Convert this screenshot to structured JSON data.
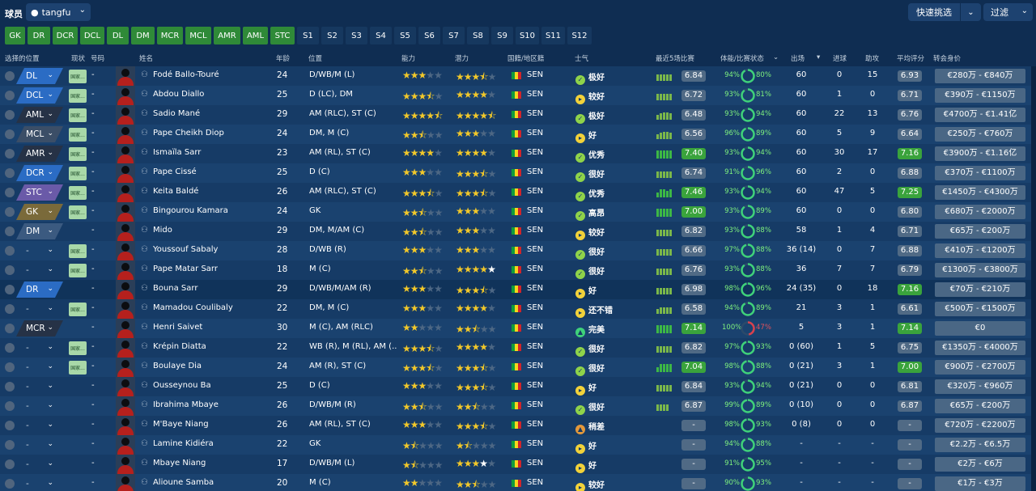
{
  "header": {
    "title": "球员",
    "view": "tangfu",
    "quick_pick": "快速挑选",
    "filter": "过滤"
  },
  "position_tabs": [
    {
      "label": "GK",
      "w": 25,
      "on": true
    },
    {
      "label": "DR",
      "w": 28,
      "on": true
    },
    {
      "label": "DCR",
      "w": 31,
      "on": true
    },
    {
      "label": "DCL",
      "w": 30,
      "on": true
    },
    {
      "label": "DL",
      "w": 27,
      "on": true
    },
    {
      "label": "DM",
      "w": 29,
      "on": true
    },
    {
      "label": "MCR",
      "w": 32,
      "on": true
    },
    {
      "label": "MCL",
      "w": 32,
      "on": true
    },
    {
      "label": "AMR",
      "w": 33,
      "on": true
    },
    {
      "label": "AML",
      "w": 31,
      "on": true
    },
    {
      "label": "STC",
      "w": 30,
      "on": true
    },
    {
      "label": "S1",
      "w": 27,
      "on": false
    },
    {
      "label": "S2",
      "w": 27,
      "on": false
    },
    {
      "label": "S3",
      "w": 27,
      "on": false
    },
    {
      "label": "S4",
      "w": 27,
      "on": false
    },
    {
      "label": "S5",
      "w": 27,
      "on": false
    },
    {
      "label": "S6",
      "w": 27,
      "on": false
    },
    {
      "label": "S7",
      "w": 27,
      "on": false
    },
    {
      "label": "S8",
      "w": 27,
      "on": false
    },
    {
      "label": "S9",
      "w": 27,
      "on": false
    },
    {
      "label": "S10",
      "w": 29,
      "on": false
    },
    {
      "label": "S11",
      "w": 29,
      "on": false
    },
    {
      "label": "S12",
      "w": 30,
      "on": false
    }
  ],
  "columns": {
    "select_pos": "选择的位置",
    "status": "现状",
    "number": "号码",
    "name": "姓名",
    "age": "年龄",
    "position": "位置",
    "ability": "能力",
    "potential": "潜力",
    "nation": "国籍/地区籍",
    "morale": "士气",
    "form": "最近5场比赛",
    "condition": "体能/比赛状态",
    "apps": "出场",
    "goals": "进球",
    "assists": "助攻",
    "avg": "平均评分",
    "value": "转会身价"
  },
  "colors": {
    "DL": "#2b6cc4",
    "DCL": "#2b6cc4",
    "AML": "#263246",
    "MCL": "#3b4e67",
    "AMR": "#263246",
    "DCR": "#2b6cc4",
    "STC": "#6a5aa8",
    "GK": "#7a6a3a",
    "DM": "#3b5a80",
    "DR": "#2b6cc4",
    "MCR": "#263246"
  },
  "players": [
    {
      "pos": "DL",
      "st": "国家...",
      "no": "-",
      "name": "Fodé Ballo-Touré",
      "age": "24",
      "ppos": "D/WB/M (L)",
      "ab": 3,
      "abh": 0,
      "pt": 3,
      "pth": 1,
      "nat": "SEN",
      "mor": "极好",
      "mi": "g",
      "form": [
        8,
        8,
        8,
        8,
        8
      ],
      "rat": "6.84",
      "rg": false,
      "cond": "94%",
      "ring": 0.92,
      "sh": "80%",
      "apps": "60",
      "gls": "0",
      "ast": "15",
      "avr": "6.93",
      "ag": false,
      "val": "€280万 - €840万"
    },
    {
      "pos": "DCL",
      "st": "国家...",
      "no": "-",
      "name": "Abdou Diallo",
      "age": "25",
      "ppos": "D (LC), DM",
      "ab": 3,
      "abh": 1,
      "pt": 4,
      "pth": 0,
      "nat": "SEN",
      "mor": "较好",
      "mi": "y",
      "form": [
        8,
        8,
        8,
        8,
        8
      ],
      "rat": "6.72",
      "rg": false,
      "cond": "93%",
      "ring": 0.9,
      "sh": "81%",
      "apps": "60",
      "gls": "1",
      "ast": "0",
      "avr": "6.71",
      "ag": false,
      "val": "€390万 - €1150万"
    },
    {
      "pos": "AML",
      "st": "国家...",
      "no": "-",
      "name": "Sadio Mané",
      "age": "29",
      "ppos": "AM (RLC), ST (C)",
      "ab": 4,
      "abh": 1,
      "pt": 4,
      "pth": 1,
      "nat": "SEN",
      "mor": "极好",
      "mi": "g",
      "form": [
        6,
        8,
        9,
        9,
        8
      ],
      "rat": "6.48",
      "rg": false,
      "cond": "93%",
      "ring": 0.9,
      "sh": "94%",
      "apps": "60",
      "gls": "22",
      "ast": "13",
      "avr": "6.76",
      "ag": false,
      "val": "€4700万 - €1.41亿"
    },
    {
      "pos": "MCL",
      "st": "国家...",
      "no": "-",
      "name": "Pape Cheikh Diop",
      "age": "24",
      "ppos": "DM, M (C)",
      "ab": 2,
      "abh": 1,
      "pt": 3,
      "pth": 0,
      "nat": "SEN",
      "mor": "好",
      "mi": "y",
      "form": [
        6,
        8,
        9,
        9,
        8
      ],
      "rat": "6.56",
      "rg": false,
      "cond": "96%",
      "ring": 0.94,
      "sh": "89%",
      "apps": "60",
      "gls": "5",
      "ast": "9",
      "avr": "6.64",
      "ag": false,
      "val": "€250万 - €760万"
    },
    {
      "pos": "AMR",
      "st": "国家...",
      "no": "-",
      "name": "Ismaïla Sarr",
      "age": "23",
      "ppos": "AM (RL), ST (C)",
      "ab": 4,
      "abh": 0,
      "pt": 4,
      "pth": 0,
      "nat": "SEN",
      "mor": "优秀",
      "mi": "g",
      "form": [
        10,
        10,
        10,
        10,
        10
      ],
      "fg": true,
      "rat": "7.40",
      "rg": true,
      "cond": "93%",
      "ring": 0.9,
      "sh": "94%",
      "apps": "60",
      "gls": "30",
      "ast": "17",
      "avr": "7.16",
      "ag": true,
      "val": "€3900万 - €1.16亿"
    },
    {
      "pos": "DCR",
      "st": "国家...",
      "no": "-",
      "name": "Pape Cissé",
      "age": "25",
      "ppos": "D (C)",
      "ab": 3,
      "abh": 0,
      "pt": 3,
      "pth": 1,
      "nat": "SEN",
      "mor": "很好",
      "mi": "g",
      "form": [
        8,
        8,
        8,
        8,
        8
      ],
      "rat": "6.74",
      "rg": false,
      "cond": "91%",
      "ring": 0.88,
      "sh": "96%",
      "apps": "60",
      "gls": "2",
      "ast": "0",
      "avr": "6.88",
      "ag": false,
      "val": "€370万 - €1100万"
    },
    {
      "pos": "STC",
      "st": "国家...",
      "no": "-",
      "name": "Keita Baldé",
      "age": "26",
      "ppos": "AM (RLC), ST (C)",
      "ab": 3,
      "abh": 1,
      "pt": 3,
      "pth": 1,
      "nat": "SEN",
      "mor": "优秀",
      "mi": "g",
      "form": [
        6,
        10,
        10,
        8,
        10
      ],
      "fg": true,
      "rat": "7.46",
      "rg": true,
      "cond": "93%",
      "ring": 0.9,
      "sh": "94%",
      "apps": "60",
      "gls": "47",
      "ast": "5",
      "avr": "7.25",
      "ag": true,
      "val": "€1450万 - €4300万"
    },
    {
      "pos": "GK",
      "st": "国家...",
      "no": "-",
      "name": "Bingourou Kamara",
      "age": "24",
      "ppos": "GK",
      "ab": 2,
      "abh": 1,
      "pt": 3,
      "pth": 0,
      "nat": "SEN",
      "mor": "高昂",
      "mi": "g",
      "form": [
        10,
        10,
        10,
        10,
        10
      ],
      "fg": true,
      "rat": "7.00",
      "rg": true,
      "cond": "93%",
      "ring": 0.9,
      "sh": "89%",
      "apps": "60",
      "gls": "0",
      "ast": "0",
      "avr": "6.80",
      "ag": false,
      "val": "€680万 - €2000万"
    },
    {
      "pos": "DM",
      "st": "",
      "no": "-",
      "name": "Mido",
      "age": "29",
      "ppos": "DM, M/AM (C)",
      "ab": 2,
      "abh": 1,
      "pt": 3,
      "pth": 0,
      "nat": "SEN",
      "mor": "较好",
      "mi": "y",
      "form": [
        8,
        8,
        8,
        8,
        8
      ],
      "rat": "6.82",
      "rg": false,
      "cond": "93%",
      "ring": 0.9,
      "sh": "88%",
      "apps": "58",
      "gls": "1",
      "ast": "4",
      "avr": "6.71",
      "ag": false,
      "val": "€65万 - €200万"
    },
    {
      "pos": "-",
      "st": "国家...",
      "no": "-",
      "name": "Youssouf Sabaly",
      "age": "28",
      "ppos": "D/WB (R)",
      "ab": 3,
      "abh": 0,
      "pt": 3,
      "pth": 0,
      "nat": "SEN",
      "mor": "很好",
      "mi": "g",
      "form": [
        8,
        8,
        8,
        8,
        8
      ],
      "rat": "6.66",
      "rg": false,
      "cond": "97%",
      "ring": 0.95,
      "sh": "88%",
      "apps": "36 (14)",
      "gls": "0",
      "ast": "7",
      "avr": "6.88",
      "ag": false,
      "val": "€410万 - €1200万"
    },
    {
      "pos": "-",
      "st": "国家...",
      "no": "-",
      "name": "Pape Matar Sarr",
      "age": "18",
      "ppos": "M (C)",
      "ab": 2,
      "abh": 1,
      "pt": 4,
      "pth": 1,
      "ptw": true,
      "nat": "SEN",
      "mor": "很好",
      "mi": "g",
      "form": [
        8,
        8,
        8,
        8,
        8
      ],
      "rat": "6.76",
      "rg": false,
      "cond": "93%",
      "ring": 0.9,
      "sh": "88%",
      "apps": "36",
      "gls": "7",
      "ast": "7",
      "avr": "6.79",
      "ag": false,
      "val": "€1300万 - €3800万"
    },
    {
      "pos": "DR",
      "st": "",
      "no": "-",
      "name": "Bouna Sarr",
      "age": "29",
      "ppos": "D/WB/M/AM (R)",
      "ab": 3,
      "abh": 0,
      "pt": 3,
      "pth": 1,
      "nat": "SEN",
      "mor": "好",
      "mi": "y",
      "form": [
        8,
        8,
        8,
        8,
        8
      ],
      "rat": "6.98",
      "rg": false,
      "cond": "98%",
      "ring": 0.96,
      "sh": "96%",
      "apps": "24 (35)",
      "gls": "0",
      "ast": "18",
      "avr": "7.16",
      "ag": true,
      "val": "€70万 - €210万"
    },
    {
      "pos": "-",
      "st": "国家...",
      "no": "-",
      "name": "Mamadou Coulibaly",
      "age": "22",
      "ppos": "DM, M (C)",
      "ab": 3,
      "abh": 0,
      "pt": 4,
      "pth": 0,
      "nat": "SEN",
      "mor": "还不错",
      "mi": "y",
      "form": [
        6,
        8,
        8,
        8,
        8
      ],
      "rat": "6.58",
      "rg": false,
      "cond": "94%",
      "ring": 0.92,
      "sh": "89%",
      "apps": "21",
      "gls": "3",
      "ast": "1",
      "avr": "6.61",
      "ag": false,
      "val": "€500万 - €1500万"
    },
    {
      "pos": "MCR",
      "st": "",
      "no": "-",
      "name": "Henri Saivet",
      "age": "30",
      "ppos": "M (C), AM (RLC)",
      "ab": 2,
      "abh": 0,
      "pt": 2,
      "pth": 1,
      "nat": "SEN",
      "mor": "完美",
      "mi": "c",
      "form": [
        10,
        10,
        10,
        10,
        10
      ],
      "fg": true,
      "rat": "7.14",
      "rg": true,
      "cond": "100%",
      "ring": 0.47,
      "rr": true,
      "sh": "47%",
      "apps": "5",
      "gls": "3",
      "ast": "1",
      "avr": "7.14",
      "ag": true,
      "val": "€0"
    },
    {
      "pos": "-",
      "st": "国家...",
      "no": "-",
      "name": "Krépin Diatta",
      "age": "22",
      "ppos": "WB (R), M (RL), AM (...",
      "ab": 3,
      "abh": 1,
      "pt": 4,
      "pth": 0,
      "nat": "SEN",
      "mor": "很好",
      "mi": "g",
      "form": [
        8,
        8,
        8,
        8,
        8
      ],
      "rat": "6.82",
      "rg": false,
      "cond": "97%",
      "ring": 0.95,
      "sh": "93%",
      "apps": "0 (60)",
      "gls": "1",
      "ast": "5",
      "avr": "6.75",
      "ag": false,
      "val": "€1350万 - €4000万"
    },
    {
      "pos": "-",
      "st": "国家...",
      "no": "-",
      "name": "Boulaye Dia",
      "age": "24",
      "ppos": "AM (R), ST (C)",
      "ab": 3,
      "abh": 1,
      "pt": 3,
      "pth": 1,
      "nat": "SEN",
      "mor": "很好",
      "mi": "g",
      "form": [
        6,
        10,
        10,
        10,
        10
      ],
      "fg": true,
      "rat": "7.04",
      "rg": true,
      "cond": "98%",
      "ring": 0.96,
      "sh": "88%",
      "apps": "0 (21)",
      "gls": "3",
      "ast": "1",
      "avr": "7.00",
      "ag": true,
      "val": "€900万 - €2700万"
    },
    {
      "pos": "-",
      "st": "",
      "no": "-",
      "name": "Ousseynou Ba",
      "age": "25",
      "ppos": "D (C)",
      "ab": 3,
      "abh": 0,
      "pt": 3,
      "pth": 1,
      "nat": "SEN",
      "mor": "好",
      "mi": "y",
      "form": [
        8,
        8,
        8,
        8,
        8
      ],
      "rat": "6.84",
      "rg": false,
      "cond": "93%",
      "ring": 0.9,
      "sh": "94%",
      "apps": "0 (21)",
      "gls": "0",
      "ast": "0",
      "avr": "6.81",
      "ag": false,
      "val": "€320万 - €960万"
    },
    {
      "pos": "-",
      "st": "",
      "no": "-",
      "name": "Ibrahima Mbaye",
      "age": "26",
      "ppos": "D/WB/M (R)",
      "ab": 2,
      "abh": 1,
      "pt": 2,
      "pth": 1,
      "nat": "SEN",
      "mor": "很好",
      "mi": "g",
      "form": [
        8,
        8,
        8,
        8
      ],
      "rat": "6.87",
      "rg": false,
      "cond": "99%",
      "ring": 0.97,
      "sh": "89%",
      "apps": "0 (10)",
      "gls": "0",
      "ast": "0",
      "avr": "6.87",
      "ag": false,
      "val": "€65万 - €200万"
    },
    {
      "pos": "-",
      "st": "",
      "no": "-",
      "name": "M'Baye Niang",
      "age": "26",
      "ppos": "AM (RL), ST (C)",
      "ab": 3,
      "abh": 0,
      "pt": 3,
      "pth": 1,
      "nat": "SEN",
      "mor": "稍差",
      "mi": "o",
      "form": [],
      "rat": "-",
      "rg": false,
      "cond": "98%",
      "ring": 0.96,
      "sh": "93%",
      "apps": "0 (8)",
      "gls": "0",
      "ast": "0",
      "avr": "-",
      "ag": false,
      "val": "€720万 - €2200万"
    },
    {
      "pos": "-",
      "st": "",
      "no": "-",
      "name": "Lamine Kidiéra",
      "age": "22",
      "ppos": "GK",
      "ab": 1,
      "abh": 1,
      "pt": 1,
      "pth": 1,
      "nat": "SEN",
      "mor": "好",
      "mi": "y",
      "form": [],
      "rat": "-",
      "rg": false,
      "cond": "94%",
      "ring": 0.92,
      "sh": "88%",
      "apps": "-",
      "gls": "-",
      "ast": "-",
      "avr": "-",
      "ag": false,
      "val": "€2.2万 - €6.5万"
    },
    {
      "pos": "-",
      "st": "",
      "no": "-",
      "name": "Mbaye Niang",
      "age": "17",
      "ppos": "D/WB/M (L)",
      "ab": 1,
      "abh": 1,
      "pt": 3,
      "pth": 0,
      "ptw": true,
      "nat": "SEN",
      "mor": "好",
      "mi": "y",
      "form": [],
      "rat": "-",
      "rg": false,
      "cond": "91%",
      "ring": 0.88,
      "sh": "95%",
      "apps": "-",
      "gls": "-",
      "ast": "-",
      "avr": "-",
      "ag": false,
      "val": "€2万 - €6万"
    },
    {
      "pos": "-",
      "st": "",
      "no": "-",
      "name": "Alioune Samba",
      "age": "20",
      "ppos": "M (C)",
      "ab": 2,
      "abh": 0,
      "pt": 2,
      "pth": 1,
      "nat": "SEN",
      "mor": "较好",
      "mi": "y",
      "form": [],
      "rat": "-",
      "rg": false,
      "cond": "90%",
      "ring": 0.88,
      "sh": "93%",
      "apps": "-",
      "gls": "-",
      "ast": "-",
      "avr": "-",
      "ag": false,
      "val": "€1万 - €3万"
    }
  ]
}
